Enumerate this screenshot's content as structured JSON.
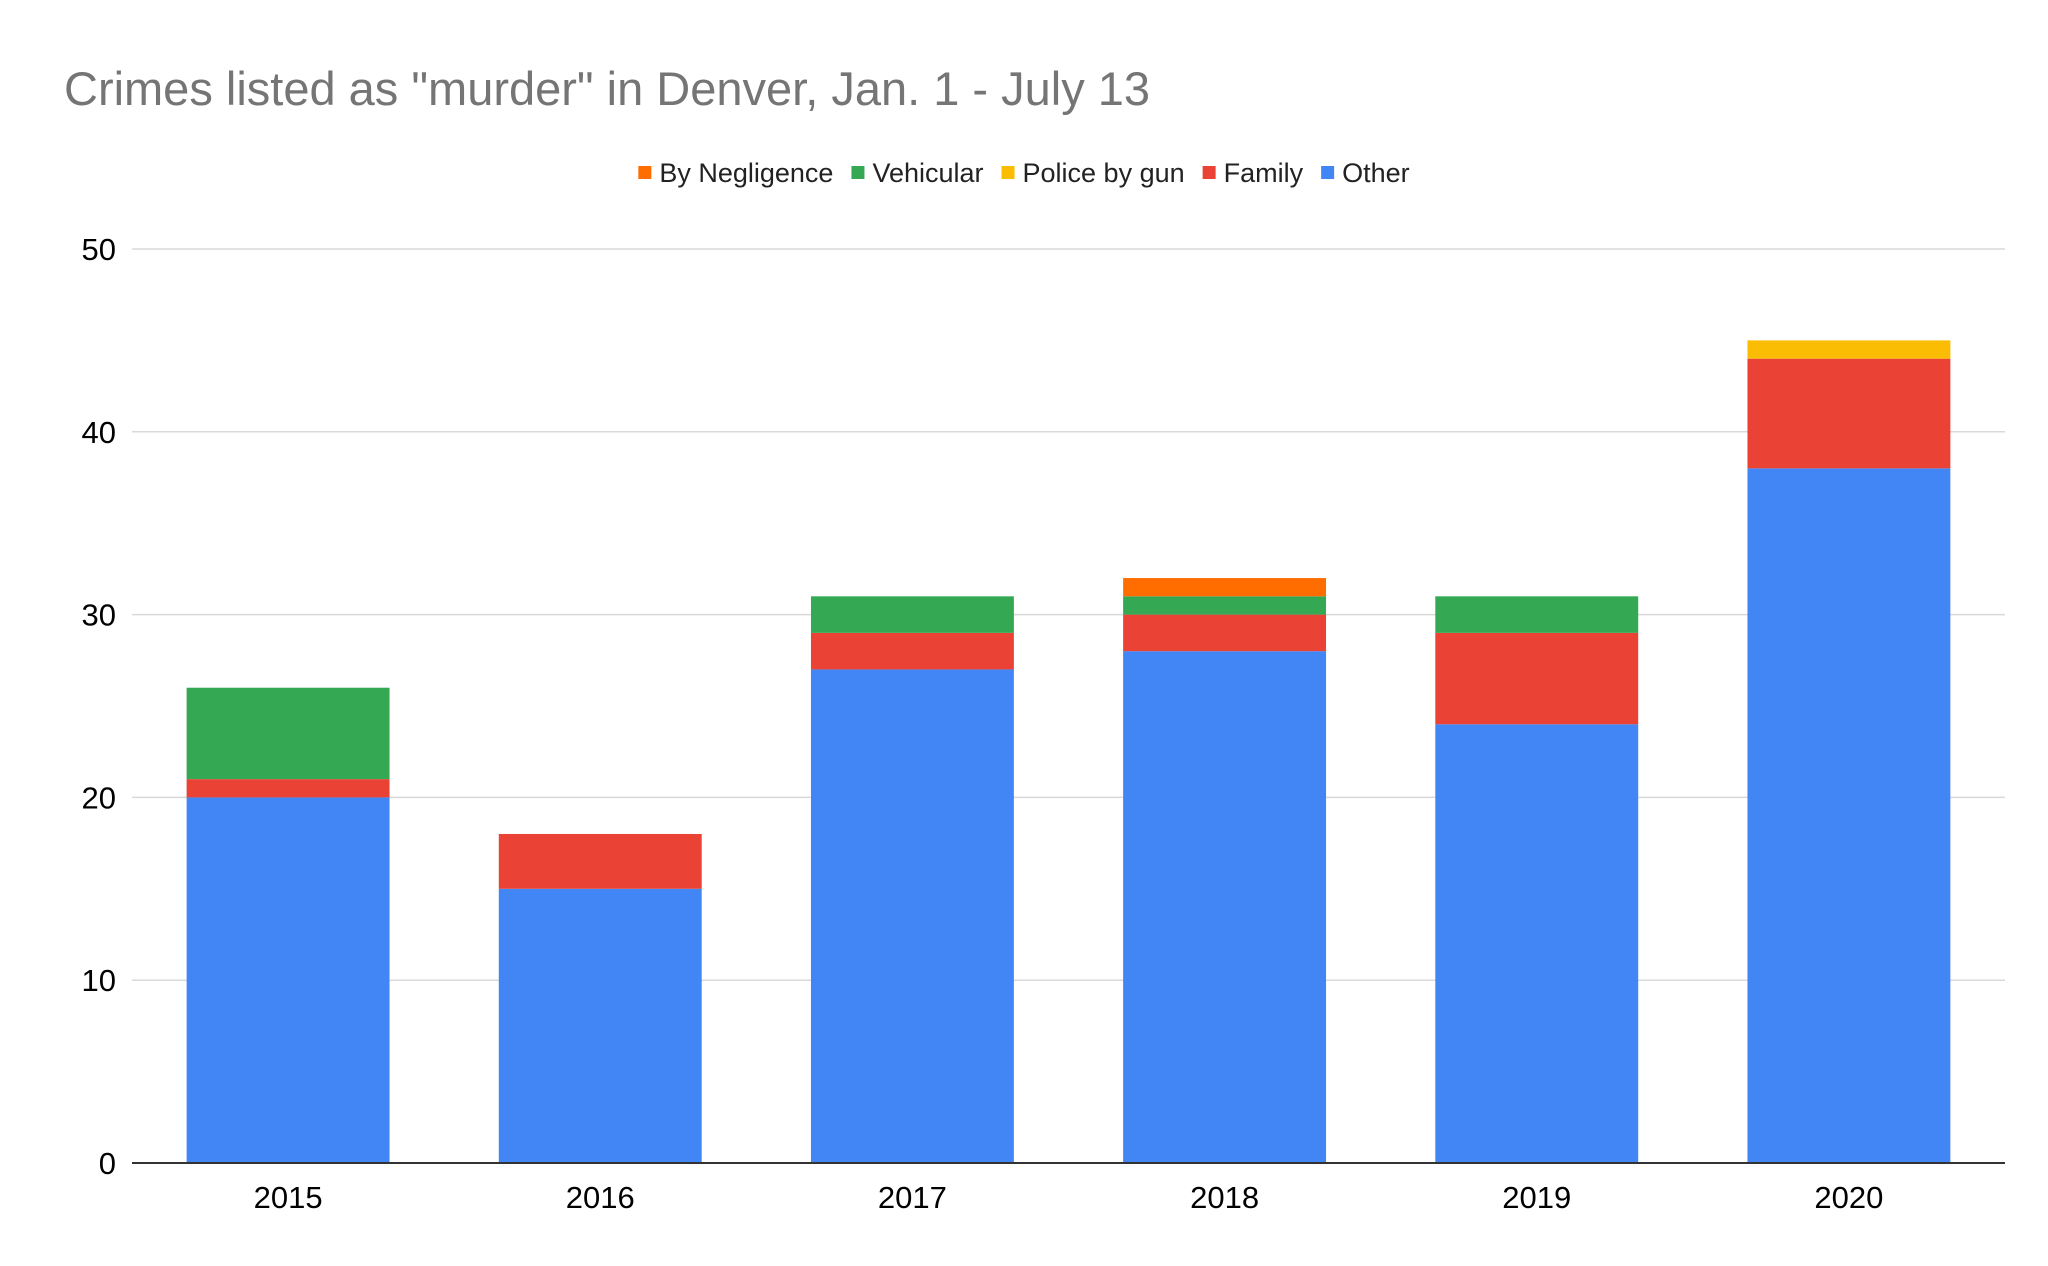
{
  "chart_data": {
    "type": "bar",
    "stacked": true,
    "title": "Crimes listed as \"murder\" in Denver, Jan. 1 - July 13",
    "xlabel": "",
    "ylabel": "",
    "categories": [
      "2015",
      "2016",
      "2017",
      "2018",
      "2019",
      "2020"
    ],
    "ylim": [
      0,
      50
    ],
    "yticks": [
      0,
      10,
      20,
      30,
      40,
      50
    ],
    "grid": true,
    "legend_position": "top",
    "legend_order": [
      "By Negligence",
      "Vehicular",
      "Police by gun",
      "Family",
      "Other"
    ],
    "series": [
      {
        "name": "Other",
        "color": "#4285f4",
        "values": [
          20,
          15,
          27,
          28,
          24,
          38
        ]
      },
      {
        "name": "Family",
        "color": "#ea4335",
        "values": [
          1,
          3,
          2,
          2,
          5,
          6
        ]
      },
      {
        "name": "Police by gun",
        "color": "#fbbc04",
        "values": [
          0,
          0,
          0,
          0,
          0,
          1
        ]
      },
      {
        "name": "Vehicular",
        "color": "#34a853",
        "values": [
          5,
          0,
          2,
          1,
          2,
          0
        ]
      },
      {
        "name": "By Negligence",
        "color": "#ff6d01",
        "values": [
          0,
          0,
          0,
          1,
          0,
          0
        ]
      }
    ]
  }
}
